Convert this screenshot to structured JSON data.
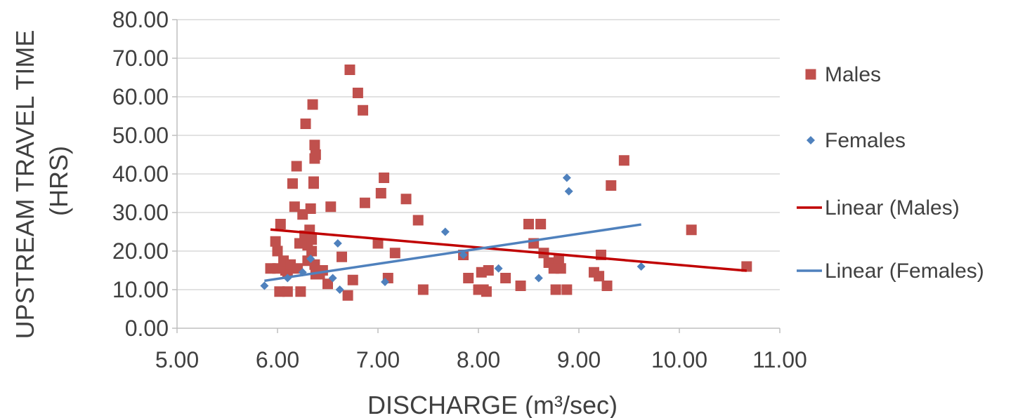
{
  "chart_data": {
    "type": "scatter",
    "title": "",
    "xlabel": "DISCHARGE (m³/sec)",
    "ylabel_lines": [
      "UPSTREAM TRAVEL TIME",
      "(HRS)"
    ],
    "xlim": [
      5,
      11
    ],
    "ylim": [
      0,
      80
    ],
    "x_ticks": [
      "5.00",
      "6.00",
      "7.00",
      "8.00",
      "9.00",
      "10.00",
      "11.00"
    ],
    "y_ticks": [
      "0.00",
      "10.00",
      "20.00",
      "30.00",
      "40.00",
      "50.00",
      "60.00",
      "70.00",
      "80.00"
    ],
    "grid": "horizontal",
    "legend_position": "right",
    "series": [
      {
        "name": "Males",
        "marker": "square",
        "color": "#C0504D",
        "points": [
          [
            5.93,
            15.5
          ],
          [
            5.98,
            22.5
          ],
          [
            6.0,
            20.0
          ],
          [
            6.0,
            15.5
          ],
          [
            6.03,
            27.0
          ],
          [
            6.02,
            9.5
          ],
          [
            6.06,
            17.5
          ],
          [
            6.08,
            15.0
          ],
          [
            6.1,
            14.5
          ],
          [
            6.1,
            9.5
          ],
          [
            6.13,
            16.5
          ],
          [
            6.15,
            37.5
          ],
          [
            6.17,
            31.5
          ],
          [
            6.19,
            42.0
          ],
          [
            6.2,
            15.5
          ],
          [
            6.22,
            22.0
          ],
          [
            6.23,
            9.5
          ],
          [
            6.25,
            29.5
          ],
          [
            6.27,
            24.0
          ],
          [
            6.28,
            53.0
          ],
          [
            6.3,
            21.5
          ],
          [
            6.3,
            17.5
          ],
          [
            6.32,
            25.5
          ],
          [
            6.33,
            31.0
          ],
          [
            6.34,
            23.0
          ],
          [
            6.34,
            20.0
          ],
          [
            6.35,
            58.0
          ],
          [
            6.36,
            38.0
          ],
          [
            6.36,
            37.5
          ],
          [
            6.37,
            47.5
          ],
          [
            6.37,
            44.0
          ],
          [
            6.38,
            45.0
          ],
          [
            6.37,
            16.5
          ],
          [
            6.38,
            14.0
          ],
          [
            6.42,
            14.0
          ],
          [
            6.45,
            15.0
          ],
          [
            6.5,
            11.5
          ],
          [
            6.53,
            31.5
          ],
          [
            6.64,
            18.5
          ],
          [
            6.7,
            8.5
          ],
          [
            6.72,
            67.0
          ],
          [
            6.75,
            12.5
          ],
          [
            6.8,
            61.0
          ],
          [
            6.85,
            56.5
          ],
          [
            6.87,
            32.5
          ],
          [
            7.0,
            22.0
          ],
          [
            7.03,
            35.0
          ],
          [
            7.06,
            39.0
          ],
          [
            7.1,
            13.0
          ],
          [
            7.17,
            19.5
          ],
          [
            7.28,
            33.5
          ],
          [
            7.4,
            28.0
          ],
          [
            7.45,
            10.0
          ],
          [
            7.85,
            19.0
          ],
          [
            7.9,
            13.0
          ],
          [
            8.0,
            10.0
          ],
          [
            8.03,
            14.5
          ],
          [
            8.05,
            10.0
          ],
          [
            8.08,
            9.5
          ],
          [
            8.1,
            15.0
          ],
          [
            8.27,
            13.0
          ],
          [
            8.42,
            11.0
          ],
          [
            8.5,
            27.0
          ],
          [
            8.55,
            22.0
          ],
          [
            8.62,
            27.0
          ],
          [
            8.65,
            19.5
          ],
          [
            8.7,
            17.0
          ],
          [
            8.75,
            15.5
          ],
          [
            8.77,
            10.0
          ],
          [
            8.8,
            18.0
          ],
          [
            8.82,
            15.5
          ],
          [
            8.88,
            10.0
          ],
          [
            9.15,
            14.5
          ],
          [
            9.2,
            13.5
          ],
          [
            9.22,
            19.0
          ],
          [
            9.28,
            11.0
          ],
          [
            9.32,
            37.0
          ],
          [
            9.45,
            43.5
          ],
          [
            10.12,
            25.5
          ],
          [
            10.67,
            16.0
          ]
        ]
      },
      {
        "name": "Females",
        "marker": "diamond",
        "color": "#4F81BD",
        "points": [
          [
            5.87,
            11.0
          ],
          [
            6.1,
            13.0
          ],
          [
            6.25,
            14.5
          ],
          [
            6.33,
            18.0
          ],
          [
            6.55,
            13.0
          ],
          [
            6.6,
            22.0
          ],
          [
            6.62,
            10.0
          ],
          [
            7.07,
            12.0
          ],
          [
            7.67,
            25.0
          ],
          [
            7.85,
            19.0
          ],
          [
            8.2,
            15.5
          ],
          [
            8.6,
            13.0
          ],
          [
            8.88,
            39.0
          ],
          [
            8.9,
            35.5
          ],
          [
            9.62,
            16.0
          ]
        ]
      },
      {
        "name": "Linear (Males)",
        "type": "line",
        "color": "#C00000",
        "points": [
          [
            5.93,
            25.6
          ],
          [
            10.67,
            14.9
          ]
        ]
      },
      {
        "name": "Linear (Females)",
        "type": "line",
        "color": "#4F81BD",
        "points": [
          [
            5.87,
            12.3
          ],
          [
            9.62,
            26.9
          ]
        ]
      }
    ]
  }
}
